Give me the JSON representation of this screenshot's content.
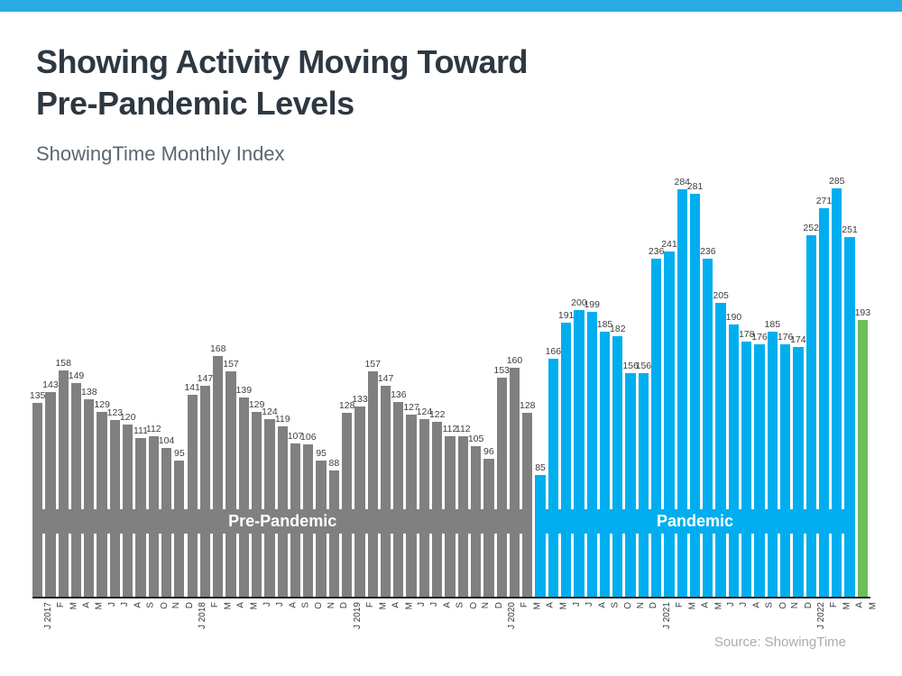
{
  "accent": {
    "top_bar_color": "#29abe2"
  },
  "header": {
    "title_line1": "Showing Activity Moving Toward",
    "title_line2": "Pre-Pandemic Levels",
    "subtitle": "ShowingTime Monthly Index"
  },
  "footer": {
    "source": "Source: ShowingTime"
  },
  "chart_data": {
    "type": "bar",
    "title": "Showing Activity Moving Toward Pre-Pandemic Levels",
    "subtitle": "ShowingTime Monthly Index",
    "xlabel": "",
    "ylabel": "",
    "ylim": [
      0,
      300
    ],
    "grid": false,
    "data_labels": true,
    "axis_line_color": "#222222",
    "value_label_color": "#3d3d3d",
    "categories": [
      "J 2017",
      "F",
      "M",
      "A",
      "M",
      "J",
      "J",
      "A",
      "S",
      "O",
      "N",
      "D",
      "J 2018",
      "F",
      "M",
      "A",
      "M",
      "J",
      "J",
      "A",
      "S",
      "O",
      "N",
      "D",
      "J 2019",
      "F",
      "M",
      "A",
      "M",
      "J",
      "J",
      "A",
      "S",
      "O",
      "N",
      "D",
      "J 2020",
      "F",
      "M",
      "A",
      "M",
      "J",
      "J",
      "A",
      "S",
      "O",
      "N",
      "D",
      "J 2021",
      "F",
      "M",
      "A",
      "M",
      "J",
      "J",
      "A",
      "S",
      "O",
      "N",
      "D",
      "J 2022",
      "F",
      "M",
      "A",
      "M"
    ],
    "values": [
      135,
      143,
      158,
      149,
      138,
      129,
      123,
      120,
      111,
      112,
      104,
      95,
      141,
      147,
      168,
      157,
      139,
      129,
      124,
      119,
      107,
      106,
      95,
      88,
      128,
      133,
      157,
      147,
      136,
      127,
      124,
      122,
      112,
      112,
      105,
      96,
      153,
      160,
      128,
      85,
      166,
      191,
      200,
      199,
      185,
      182,
      156,
      156,
      236,
      241,
      284,
      281,
      236,
      205,
      190,
      178,
      176,
      185,
      176,
      174,
      252,
      271,
      285,
      251,
      193
    ],
    "segments": [
      {
        "name": "pre-pandemic",
        "label": "Pre-Pandemic",
        "start_index": 0,
        "end_index": 38,
        "color": "#808080"
      },
      {
        "name": "pandemic",
        "label": "Pandemic",
        "start_index": 39,
        "end_index": 63,
        "color": "#00aeef"
      },
      {
        "name": "latest-month",
        "label": "",
        "start_index": 64,
        "end_index": 64,
        "color": "#6cbe59"
      }
    ]
  }
}
